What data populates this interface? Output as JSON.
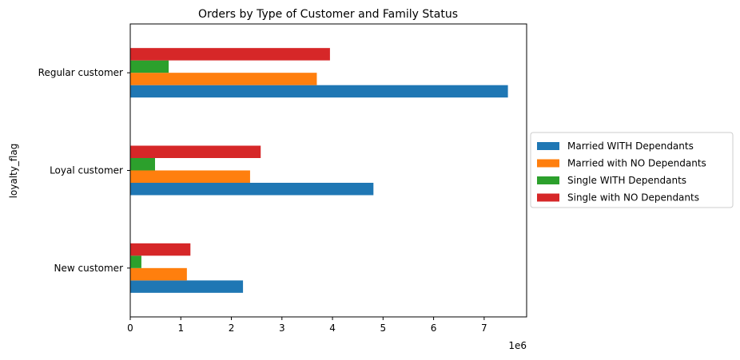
{
  "chart_data": {
    "type": "bar",
    "orientation": "horizontal",
    "title": "Orders by Type of Customer and Family Status",
    "xlabel": "",
    "ylabel": "loyalty_flag",
    "x_offset_label": "1e6",
    "xlim": [
      0,
      7.84
    ],
    "x_ticks": [
      0,
      1,
      2,
      3,
      4,
      5,
      6,
      7
    ],
    "x_tick_labels": [
      "0",
      "1",
      "2",
      "3",
      "4",
      "5",
      "6",
      "7"
    ],
    "categories": [
      "New customer",
      "Loyal customer",
      "Regular customer"
    ],
    "series": [
      {
        "name": "Married WITH Dependants",
        "color": "#1f77b4",
        "values": [
          2.23,
          4.81,
          7.47
        ]
      },
      {
        "name": "Married with NO Dependants",
        "color": "#ff7f0e",
        "values": [
          1.12,
          2.37,
          3.69
        ]
      },
      {
        "name": "Single WITH Dependants",
        "color": "#2ca02c",
        "values": [
          0.22,
          0.49,
          0.76
        ]
      },
      {
        "name": "Single with NO Dependants",
        "color": "#d62728",
        "values": [
          1.19,
          2.58,
          3.95
        ]
      }
    ],
    "legend_position": "center-right-outside",
    "grid": false
  }
}
